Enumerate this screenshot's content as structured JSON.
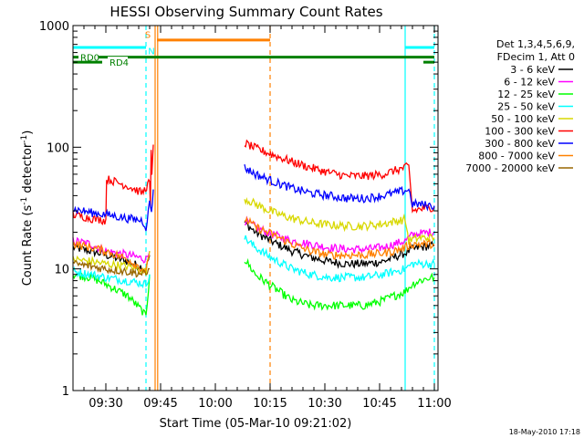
{
  "chart_data": {
    "type": "line",
    "title": "HESSI Observing Summary Count Rates",
    "xlabel": "Start Time (05-Mar-10 09:21:02)",
    "ylabel": "Count Rate (s⁻¹ detector⁻¹)",
    "ylabel_parts": {
      "main": "Count Rate (s",
      "sup1": "-1",
      "mid": " detector",
      "sup2": "-1",
      "end": ")"
    },
    "xlim": [
      0,
      100
    ],
    "ylim": [
      1,
      1000
    ],
    "yscale": "log",
    "x_ticks": [
      {
        "label": "09:30",
        "x": 9
      },
      {
        "label": "09:45",
        "x": 24
      },
      {
        "label": "10:00",
        "x": 39
      },
      {
        "label": "10:15",
        "x": 54
      },
      {
        "label": "10:30",
        "x": 69
      },
      {
        "label": "10:45",
        "x": 84
      },
      {
        "label": "11:00",
        "x": 99
      }
    ],
    "y_ticks": [
      {
        "label": "1",
        "y": 1
      },
      {
        "label": "10",
        "y": 10
      },
      {
        "label": "100",
        "y": 100
      },
      {
        "label": "1000",
        "y": 1000
      }
    ],
    "legend": {
      "placement": "outside-right",
      "header": [
        "Det 1,3,4,5,6,9,",
        "FDecim 1, Att 0"
      ]
    },
    "timestamp": "18-May-2010 17:18",
    "series": [
      {
        "name": "3 - 6 keV",
        "color": "#000000",
        "segments": [
          {
            "x": [
              0,
              5,
              9,
              15,
              20,
              21
            ],
            "y": [
              15,
              14,
              13,
              11.5,
              10,
              13
            ]
          },
          {
            "x": [
              47,
              50,
              55,
              60,
              65,
              70,
              75,
              80,
              85,
              88,
              91,
              92,
              93,
              95,
              98,
              99
            ],
            "y": [
              24,
              20,
              16.5,
              14,
              12.5,
              11.5,
              11,
              11,
              11.5,
              12.5,
              13.5,
              14,
              14.5,
              15,
              15.5,
              15.5
            ]
          }
        ]
      },
      {
        "name": "6 - 12 keV",
        "color": "#ff00ff",
        "segments": [
          {
            "x": [
              0,
              5,
              9,
              15,
              20,
              21
            ],
            "y": [
              17,
              16,
              14,
              13,
              12,
              14
            ]
          },
          {
            "x": [
              47,
              50,
              55,
              60,
              65,
              70,
              75,
              80,
              85,
              88,
              91,
              92,
              93,
              95,
              98,
              99
            ],
            "y": [
              25,
              22,
              19,
              17,
              16,
              15,
              14.5,
              14.5,
              15,
              16,
              17,
              18,
              19,
              19.5,
              20,
              20
            ]
          }
        ]
      },
      {
        "name": "12 - 25 keV",
        "color": "#00ff00",
        "segments": [
          {
            "x": [
              0,
              5,
              9,
              15,
              19,
              20,
              21
            ],
            "y": [
              9,
              8.5,
              7.5,
              6,
              4.5,
              4,
              9
            ]
          },
          {
            "x": [
              47,
              50,
              55,
              60,
              65,
              70,
              75,
              80,
              85,
              88,
              91,
              92,
              93,
              95,
              98,
              99
            ],
            "y": [
              12,
              9,
              7,
              5.5,
              5,
              5,
              5,
              5,
              5.5,
              6,
              6.5,
              7,
              7.5,
              8,
              8.5,
              8.5
            ]
          }
        ]
      },
      {
        "name": "25 - 50 keV",
        "color": "#00ffff",
        "segments": [
          {
            "x": [
              0,
              5,
              9,
              15,
              20,
              21
            ],
            "y": [
              9.5,
              9,
              8.5,
              8,
              7.5,
              9
            ]
          },
          {
            "x": [
              47,
              50,
              55,
              60,
              65,
              70,
              75,
              80,
              85,
              88,
              91,
              92,
              93,
              95,
              98,
              99
            ],
            "y": [
              18,
              15,
              12,
              10,
              9,
              8.5,
              8.5,
              8.5,
              9,
              9.5,
              10,
              10.5,
              11,
              11,
              11,
              11
            ]
          }
        ]
      },
      {
        "name": "50 - 100 keV",
        "color": "#d8d800",
        "segments": [
          {
            "x": [
              0,
              5,
              9,
              15,
              20,
              21
            ],
            "y": [
              12,
              11.5,
              11,
              10.5,
              9.5,
              14
            ]
          },
          {
            "x": [
              47,
              50,
              55,
              60,
              65,
              70,
              75,
              80,
              85,
              88,
              91,
              92,
              93,
              95,
              98,
              99
            ],
            "y": [
              38,
              34,
              29,
              26,
              24,
              23,
              22.5,
              22.5,
              23.5,
              24.5,
              25.5,
              17,
              17.5,
              18,
              18,
              18
            ]
          }
        ]
      },
      {
        "name": "100 - 300 keV",
        "color": "#ff0000",
        "segments": [
          {
            "x": [
              0,
              5,
              9,
              9.2,
              15,
              19,
              21,
              21.2,
              21.4,
              21.6,
              22
            ],
            "y": [
              28,
              26,
              25,
              55,
              48,
              42,
              52,
              30,
              90,
              60,
              105
            ]
          },
          {
            "x": [
              47,
              50,
              55,
              60,
              65,
              70,
              75,
              80,
              85,
              88,
              91,
              92,
              93,
              95,
              98,
              99
            ],
            "y": [
              108,
              98,
              86,
              76,
              68,
              62,
              58,
              58,
              60,
              64,
              68,
              69,
              30,
              31,
              32,
              32
            ]
          }
        ]
      },
      {
        "name": "300 - 800 keV",
        "color": "#0000ff",
        "segments": [
          {
            "x": [
              0,
              5,
              9,
              15,
              19,
              20,
              21,
              21.5,
              22
            ],
            "y": [
              31,
              29,
              28,
              26,
              25,
              22,
              35,
              30,
              45
            ]
          },
          {
            "x": [
              47,
              50,
              55,
              60,
              65,
              70,
              75,
              80,
              85,
              88,
              91,
              92,
              93,
              95,
              98,
              99
            ],
            "y": [
              68,
              60,
              52,
              46,
              42,
              40,
              38,
              38,
              40,
              42,
              44,
              45,
              34,
              34,
              33,
              33
            ]
          }
        ]
      },
      {
        "name": "800 - 7000 keV",
        "color": "#ff8000",
        "segments": [
          {
            "x": [
              0,
              5,
              9,
              15,
              19,
              20,
              21
            ],
            "y": [
              16,
              15,
              14,
              12,
              10,
              9.5,
              13
            ]
          },
          {
            "x": [
              47,
              50,
              55,
              60,
              65,
              70,
              75,
              80,
              85,
              88,
              91,
              92,
              93,
              95,
              98,
              99
            ],
            "y": [
              26,
              22,
              19,
              16,
              14,
              13,
              13,
              13,
              13.5,
              14,
              15,
              15.5,
              16,
              16,
              16,
              16
            ]
          }
        ]
      },
      {
        "name": "7000 - 20000 keV",
        "color": "#996600",
        "segments": [
          {
            "x": [
              0,
              5,
              9,
              15,
              20,
              21
            ],
            "y": [
              11,
              10.5,
              10,
              9.5,
              9,
              10
            ]
          }
        ]
      }
    ],
    "annotations": [
      {
        "label": "RD0",
        "color": "#008000",
        "y": 550,
        "segments": [
          [
            0,
            99
          ]
        ]
      },
      {
        "label": "RD4",
        "color": "#008000",
        "y": 500,
        "segments": [
          [
            0,
            8
          ],
          [
            96,
            99
          ]
        ]
      },
      {
        "label": "S",
        "color": "#ff8000",
        "y": 850,
        "x": 20.5
      },
      {
        "label": "N",
        "color": "#00ffff",
        "y": 620,
        "x": 21.5
      }
    ],
    "saa_bar": {
      "color": "#ff8000",
      "y": 760,
      "x_range": [
        23,
        54
      ]
    },
    "cyan_bars": {
      "color": "#00ffff",
      "y": 660,
      "segments": [
        [
          0,
          20
        ],
        [
          91,
          99
        ]
      ]
    },
    "vertical_lines": [
      {
        "x": 20,
        "color": "#00ffff",
        "style": "dashed"
      },
      {
        "x": 22.5,
        "color": "#ff8000",
        "style": "solid"
      },
      {
        "x": 23.2,
        "color": "#ff8000",
        "style": "solid"
      },
      {
        "x": 54,
        "color": "#ff8000",
        "style": "dashed"
      },
      {
        "x": 91,
        "color": "#00ffff",
        "style": "solid"
      },
      {
        "x": 99,
        "color": "#00ffff",
        "style": "dashed"
      }
    ]
  }
}
